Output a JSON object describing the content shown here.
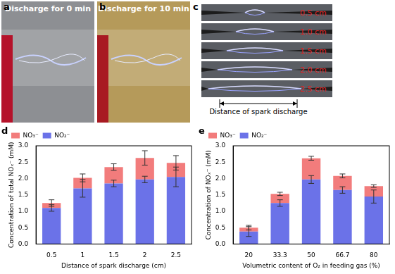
{
  "panels": [
    {
      "letter": "a",
      "caption": "Discharge for 0 min"
    },
    {
      "letter": "b",
      "caption": "Discharge for 10 min"
    },
    {
      "letter": "c",
      "gap_labels": [
        "0.5 cm",
        "1.0 cm",
        "1.5 cm",
        "2.0 cm",
        "2.5 cm"
      ],
      "caption": "Distance of spark discharge"
    }
  ],
  "chart_data": [
    {
      "type": "bar",
      "annotations": [
        "d"
      ],
      "stacked": true,
      "grid": false,
      "legend": "upper left",
      "xlabel": "Distance of spark discharge (cm)",
      "ylabel": "Concentration of total NOₓ⁻ (mM)",
      "categories": [
        "0.5",
        "1",
        "1.5",
        "2",
        "2.5"
      ],
      "series": [
        {
          "name": "NO₂⁻",
          "color": "#6b72e8",
          "values": [
            1.1,
            1.7,
            1.85,
            1.97,
            2.05
          ],
          "errors": [
            0.1,
            0.27,
            0.1,
            0.1,
            0.3
          ]
        },
        {
          "name": "NO₃⁻",
          "color": "#f27c7c",
          "values": [
            0.15,
            0.32,
            0.5,
            0.66,
            0.43
          ],
          "errors": [
            0.1,
            0.12,
            0.1,
            0.22,
            0.22
          ]
        }
      ],
      "ylim": [
        0,
        3.0
      ],
      "yticks": [
        {
          "value": 0,
          "label": "0.0"
        },
        0.5,
        {
          "value": 1,
          "label": "1.0"
        },
        1.5,
        {
          "value": 2,
          "label": "2.0"
        },
        2.5,
        {
          "value": 3,
          "label": "3.0"
        }
      ]
    },
    {
      "type": "bar",
      "annotations": [
        "e"
      ],
      "stacked": true,
      "grid": false,
      "legend": "upper left",
      "xlabel": "Volumetric content of O₂ in feeding gas (%)",
      "ylabel": "Concentration of NOₓ⁻ (mM)",
      "categories": [
        "20",
        "33.3",
        "50",
        "66.7",
        "80"
      ],
      "series": [
        {
          "name": "NO₂⁻",
          "color": "#6b72e8",
          "values": [
            0.38,
            1.25,
            1.97,
            1.65,
            1.45
          ],
          "errors": [
            0.15,
            0.1,
            0.12,
            0.1,
            0.2
          ]
        },
        {
          "name": "NO₃⁻",
          "color": "#f27c7c",
          "values": [
            0.12,
            0.28,
            0.65,
            0.43,
            0.32
          ],
          "errors": [
            0.07,
            0.05,
            0.06,
            0.06,
            0.04
          ]
        }
      ],
      "ylim": [
        0,
        3.0
      ],
      "yticks": [
        {
          "value": 0,
          "label": "0.0"
        },
        0.5,
        {
          "value": 1,
          "label": "1.0"
        },
        1.5,
        {
          "value": 2,
          "label": "2.0"
        },
        2.5,
        {
          "value": 3,
          "label": "3.0"
        }
      ]
    }
  ]
}
